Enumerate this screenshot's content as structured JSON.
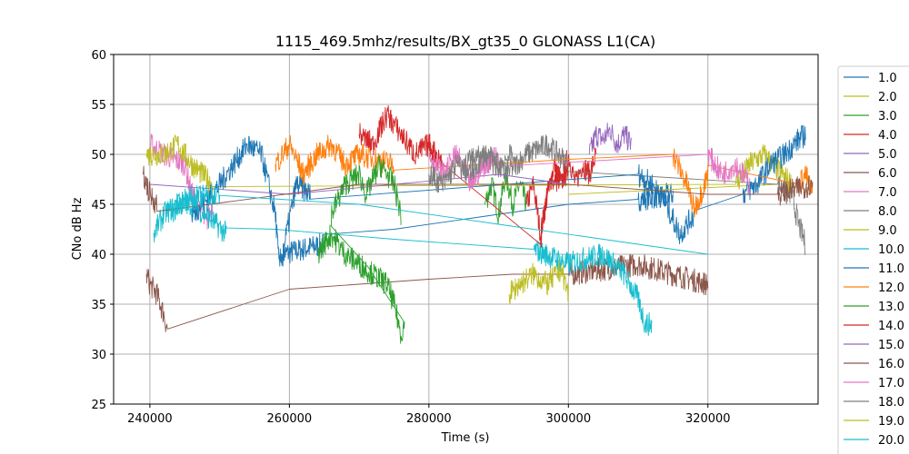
{
  "chart_data": {
    "type": "line",
    "title": "1115_469.5mhz/results/BX_gt35_0 GLONASS L1(CA)",
    "xlabel": "Time (s)",
    "ylabel": "CNo dB Hz",
    "xlim": [
      234800,
      335800
    ],
    "ylim": [
      25,
      60
    ],
    "xticks": [
      240000,
      260000,
      280000,
      300000,
      320000
    ],
    "xtick_labels": [
      "240000",
      "260000",
      "280000",
      "300000",
      "320000"
    ],
    "yticks": [
      25,
      30,
      35,
      40,
      45,
      50,
      55,
      60
    ],
    "ytick_labels": [
      "25",
      "30",
      "35",
      "40",
      "45",
      "50",
      "55",
      "60"
    ],
    "grid": true,
    "legend_position": "right, outside plot area",
    "series": [
      {
        "name": "1.0",
        "color": "#1f77b4",
        "points": [
          [
            259000,
            40
          ],
          [
            265000,
            41
          ],
          [
            275000,
            42.5
          ],
          [
            285000,
            43.5
          ],
          [
            300000,
            45
          ],
          [
            310000,
            45.5
          ],
          [
            315000,
            46
          ]
        ]
      },
      {
        "name": "2.0",
        "color": "#bcbd22",
        "points": [
          [
            300000,
            46
          ],
          [
            315000,
            46.5
          ],
          [
            330000,
            47
          ]
        ]
      },
      {
        "name": "3.0",
        "color": "#2ca02c",
        "points": [
          [
            288000,
            45
          ],
          [
            289000,
            47
          ],
          [
            290000,
            44
          ],
          [
            291000,
            48
          ],
          [
            292000,
            45
          ],
          [
            293000,
            47
          ],
          [
            294000,
            45
          ]
        ]
      },
      {
        "name": "4.0",
        "color": "#d62728",
        "points": [
          [
            294000,
            45
          ],
          [
            295000,
            47
          ],
          [
            296000,
            42
          ],
          [
            297000,
            46
          ],
          [
            298000,
            49
          ],
          [
            299000,
            47
          ],
          [
            300000,
            50
          ],
          [
            301000,
            47
          ],
          [
            302000,
            49
          ],
          [
            303000,
            48
          ],
          [
            304000,
            50
          ]
        ]
      },
      {
        "name": "5.0",
        "color": "#9467bd",
        "points": [
          [
            303000,
            50
          ],
          [
            304000,
            52
          ],
          [
            305000,
            51.5
          ],
          [
            306000,
            52.5
          ],
          [
            307000,
            51
          ],
          [
            308000,
            52
          ],
          [
            309000,
            51
          ]
        ]
      },
      {
        "name": "6.0",
        "color": "#8c564b",
        "points": [
          [
            239500,
            38
          ],
          [
            240000,
            37
          ],
          [
            241000,
            36
          ],
          [
            242000,
            34
          ],
          [
            242500,
            32.5
          ],
          [
            260000,
            36.5
          ],
          [
            280000,
            37.5
          ],
          [
            292000,
            38
          ],
          [
            300000,
            38
          ],
          [
            305000,
            38.5
          ],
          [
            310000,
            39
          ],
          [
            315000,
            38
          ],
          [
            320000,
            37
          ]
        ]
      },
      {
        "name": "7.0",
        "color": "#e377c2",
        "points": [
          [
            240000,
            51
          ],
          [
            242000,
            50
          ],
          [
            245000,
            49
          ],
          [
            246000,
            46
          ],
          [
            247000,
            45
          ],
          [
            248000,
            43
          ],
          [
            249000,
            45
          ]
        ]
      },
      {
        "name": "8.0",
        "color": "#7f7f7f",
        "points": [
          [
            285000,
            49
          ],
          [
            288000,
            50
          ],
          [
            291000,
            48
          ],
          [
            294000,
            50
          ],
          [
            297000,
            51
          ],
          [
            300000,
            49
          ],
          [
            330000,
            47
          ],
          [
            332000,
            46
          ],
          [
            333000,
            43
          ],
          [
            334000,
            41
          ]
        ]
      },
      {
        "name": "9.0",
        "color": "#bcbd22",
        "points": [
          [
            239500,
            50
          ],
          [
            242000,
            50
          ],
          [
            244000,
            51
          ],
          [
            246000,
            49
          ],
          [
            249000,
            47
          ],
          [
            324000,
            47
          ],
          [
            326000,
            49
          ],
          [
            328000,
            50
          ],
          [
            330000,
            48.5
          ],
          [
            332000,
            47
          ]
        ]
      },
      {
        "name": "10.0",
        "color": "#17becf",
        "points": [
          [
            240500,
            42
          ],
          [
            242000,
            44
          ],
          [
            244000,
            45
          ],
          [
            246000,
            45
          ],
          [
            248000,
            44
          ],
          [
            251000,
            42
          ],
          [
            258000,
            42.5
          ],
          [
            275000,
            41.5
          ],
          [
            295000,
            40.5
          ],
          [
            300000,
            39
          ],
          [
            302000,
            39.5
          ],
          [
            305000,
            40
          ],
          [
            308000,
            38
          ],
          [
            310000,
            35.5
          ],
          [
            311000,
            33
          ],
          [
            312000,
            33
          ]
        ]
      },
      {
        "name": "11.0",
        "color": "#1f77b4",
        "points": [
          [
            246000,
            44
          ],
          [
            249000,
            46
          ],
          [
            252000,
            49
          ],
          [
            254000,
            51
          ],
          [
            256000,
            50
          ],
          [
            258000,
            44
          ],
          [
            258500,
            39
          ],
          [
            259000,
            40
          ],
          [
            261000,
            47
          ],
          [
            263000,
            46
          ],
          [
            310000,
            48
          ],
          [
            312000,
            47
          ],
          [
            314000,
            45
          ],
          [
            316000,
            42
          ],
          [
            318000,
            44
          ],
          [
            325000,
            46
          ],
          [
            327000,
            47
          ],
          [
            329000,
            49
          ],
          [
            331000,
            50
          ],
          [
            333000,
            51.5
          ],
          [
            334000,
            52
          ]
        ]
      },
      {
        "name": "12.0",
        "color": "#ff7f0e",
        "points": [
          [
            258000,
            49
          ],
          [
            260000,
            51
          ],
          [
            262000,
            48
          ],
          [
            264000,
            50
          ],
          [
            266000,
            51
          ],
          [
            268000,
            49
          ],
          [
            270000,
            50
          ],
          [
            275000,
            49
          ],
          [
            300000,
            49.5
          ],
          [
            315000,
            50
          ],
          [
            317000,
            47
          ],
          [
            318000,
            44.5
          ],
          [
            319000,
            46
          ],
          [
            320000,
            48
          ],
          [
            333000,
            47
          ],
          [
            334000,
            48
          ],
          [
            335000,
            46
          ]
        ]
      },
      {
        "name": "13.0",
        "color": "#2ca02c",
        "points": [
          [
            264000,
            40
          ],
          [
            266000,
            42
          ],
          [
            268000,
            40
          ],
          [
            270000,
            39
          ],
          [
            272000,
            38
          ],
          [
            274000,
            37
          ],
          [
            275000,
            35
          ],
          [
            276000,
            32
          ],
          [
            276500,
            33
          ],
          [
            266000,
            44
          ],
          [
            268000,
            47
          ],
          [
            270000,
            48
          ],
          [
            271000,
            46
          ],
          [
            273000,
            49
          ],
          [
            275000,
            47
          ],
          [
            276000,
            44
          ]
        ]
      },
      {
        "name": "14.0",
        "color": "#d62728",
        "points": [
          [
            270000,
            52
          ],
          [
            272000,
            51
          ],
          [
            274000,
            54
          ],
          [
            276000,
            52
          ],
          [
            278000,
            50
          ],
          [
            280000,
            51
          ],
          [
            282000,
            49
          ],
          [
            296000,
            41
          ],
          [
            297000,
            47
          ],
          [
            300000,
            48
          ]
        ]
      },
      {
        "name": "15.0",
        "color": "#9467bd",
        "points": [
          [
            240000,
            47
          ],
          [
            260000,
            46
          ],
          [
            290000,
            48
          ],
          [
            300000,
            47
          ]
        ]
      },
      {
        "name": "16.0",
        "color": "#8c564b",
        "points": [
          [
            239000,
            48
          ],
          [
            240000,
            46
          ],
          [
            241000,
            45
          ],
          [
            270000,
            47
          ],
          [
            300000,
            47
          ],
          [
            320000,
            46
          ],
          [
            330000,
            46
          ],
          [
            335000,
            47
          ]
        ]
      },
      {
        "name": "17.0",
        "color": "#e377c2",
        "points": [
          [
            280000,
            50
          ],
          [
            282000,
            48
          ],
          [
            284000,
            50
          ],
          [
            286000,
            47
          ],
          [
            288000,
            49
          ],
          [
            290000,
            50
          ],
          [
            320000,
            50
          ],
          [
            322000,
            48
          ],
          [
            324000,
            49
          ],
          [
            326000,
            47
          ]
        ]
      },
      {
        "name": "18.0",
        "color": "#7f7f7f",
        "points": [
          [
            280000,
            48
          ],
          [
            282000,
            47
          ],
          [
            284000,
            49
          ],
          [
            286000,
            48
          ],
          [
            288000,
            50
          ],
          [
            290000,
            49
          ],
          [
            292000,
            50
          ]
        ]
      },
      {
        "name": "19.0",
        "color": "#bcbd22",
        "points": [
          [
            291500,
            36
          ],
          [
            293000,
            37
          ],
          [
            295000,
            38
          ],
          [
            297000,
            37
          ],
          [
            299000,
            38.5
          ],
          [
            300000,
            36
          ]
        ]
      },
      {
        "name": "20.0",
        "color": "#17becf",
        "points": [
          [
            243000,
            44
          ],
          [
            245000,
            45.5
          ],
          [
            250000,
            46
          ],
          [
            270000,
            45
          ],
          [
            290000,
            43
          ],
          [
            310000,
            41
          ],
          [
            320000,
            40
          ]
        ]
      }
    ],
    "legend_entries": [
      "1.0",
      "2.0",
      "3.0",
      "4.0",
      "5.0",
      "6.0",
      "7.0",
      "8.0",
      "9.0",
      "10.0",
      "11.0",
      "12.0",
      "13.0",
      "14.0",
      "15.0",
      "16.0",
      "17.0",
      "18.0",
      "19.0",
      "20.0"
    ]
  }
}
